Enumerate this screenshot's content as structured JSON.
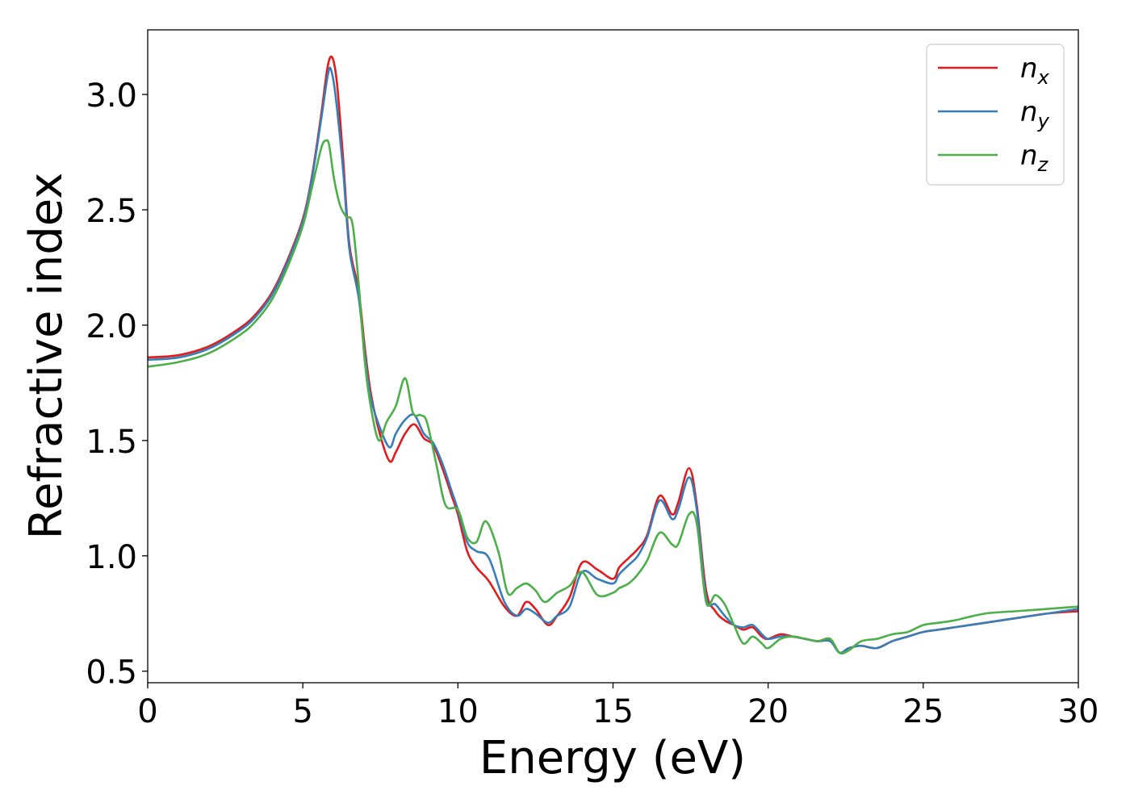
{
  "chart_data": {
    "type": "line",
    "title": "",
    "xlabel": "Energy (eV)",
    "ylabel": "Refractive index",
    "xlim": [
      0,
      30
    ],
    "ylim": [
      0.45,
      3.28
    ],
    "xticks": [
      0,
      5,
      10,
      15,
      20,
      25,
      30
    ],
    "xtick_labels": [
      "0",
      "5",
      "10",
      "15",
      "20",
      "25",
      "30"
    ],
    "yticks": [
      0.5,
      1.0,
      1.5,
      2.0,
      2.5,
      3.0
    ],
    "ytick_labels": [
      "0.5",
      "1.0",
      "1.5",
      "2.0",
      "2.5",
      "3.0"
    ],
    "grid": false,
    "legend_position": "top-right",
    "series": [
      {
        "name": "n",
        "subscript": "x",
        "color": "#e41a1c",
        "x": [
          0,
          1,
          2,
          3,
          3.5,
          4,
          4.5,
          5,
          5.3,
          5.6,
          5.8,
          5.95,
          6.1,
          6.3,
          6.5,
          6.8,
          7.0,
          7.2,
          7.5,
          7.8,
          8.0,
          8.3,
          8.6,
          8.9,
          9.2,
          9.5,
          9.8,
          10.0,
          10.3,
          10.6,
          11.0,
          11.5,
          11.9,
          12.2,
          12.5,
          12.9,
          13.2,
          13.6,
          14.0,
          14.5,
          15.0,
          15.2,
          15.5,
          15.8,
          16.1,
          16.5,
          16.9,
          17.1,
          17.45,
          17.7,
          18.0,
          18.3,
          18.6,
          18.9,
          19.2,
          19.5,
          19.8,
          20.0,
          20.4,
          20.8,
          21.2,
          21.6,
          22.0,
          22.3,
          22.6,
          23.0,
          23.5,
          24.0,
          24.5,
          25.0,
          25.5,
          26.0,
          27.0,
          28.0,
          29.0,
          30.0
        ],
        "values": [
          1.86,
          1.87,
          1.91,
          1.99,
          2.05,
          2.14,
          2.28,
          2.46,
          2.65,
          2.92,
          3.12,
          3.16,
          3.05,
          2.72,
          2.35,
          2.15,
          1.9,
          1.7,
          1.52,
          1.41,
          1.45,
          1.53,
          1.57,
          1.51,
          1.48,
          1.38,
          1.26,
          1.18,
          1.02,
          0.95,
          0.89,
          0.78,
          0.74,
          0.8,
          0.77,
          0.7,
          0.74,
          0.82,
          0.97,
          0.94,
          0.9,
          0.95,
          0.99,
          1.03,
          1.09,
          1.26,
          1.18,
          1.23,
          1.38,
          1.22,
          0.85,
          0.76,
          0.72,
          0.7,
          0.68,
          0.69,
          0.65,
          0.64,
          0.66,
          0.65,
          0.64,
          0.63,
          0.64,
          0.58,
          0.6,
          0.61,
          0.6,
          0.63,
          0.65,
          0.67,
          0.68,
          0.69,
          0.71,
          0.73,
          0.75,
          0.76
        ]
      },
      {
        "name": "n",
        "subscript": "y",
        "color": "#377eb8",
        "x": [
          0,
          1,
          2,
          3,
          3.5,
          4,
          4.5,
          5,
          5.3,
          5.6,
          5.8,
          5.9,
          6.05,
          6.3,
          6.5,
          6.8,
          7.0,
          7.2,
          7.5,
          7.8,
          8.0,
          8.3,
          8.6,
          8.9,
          9.2,
          9.5,
          9.8,
          10.0,
          10.3,
          10.6,
          11.0,
          11.5,
          11.9,
          12.2,
          12.5,
          12.9,
          13.2,
          13.6,
          14.0,
          14.5,
          15.0,
          15.2,
          15.5,
          15.8,
          16.1,
          16.5,
          16.9,
          17.1,
          17.45,
          17.7,
          18.0,
          18.3,
          18.6,
          18.9,
          19.2,
          19.5,
          19.8,
          20.0,
          20.4,
          20.8,
          21.2,
          21.6,
          22.0,
          22.3,
          22.6,
          23.0,
          23.5,
          24.0,
          24.5,
          25.0,
          25.5,
          26.0,
          27.0,
          28.0,
          29.0,
          30.0
        ],
        "values": [
          1.85,
          1.86,
          1.9,
          1.98,
          2.04,
          2.13,
          2.27,
          2.45,
          2.64,
          2.9,
          3.08,
          3.11,
          3.0,
          2.67,
          2.33,
          2.12,
          1.87,
          1.68,
          1.55,
          1.47,
          1.53,
          1.59,
          1.61,
          1.53,
          1.49,
          1.4,
          1.28,
          1.2,
          1.06,
          1.02,
          0.99,
          0.8,
          0.74,
          0.77,
          0.75,
          0.71,
          0.74,
          0.78,
          0.93,
          0.9,
          0.88,
          0.92,
          0.96,
          1.0,
          1.08,
          1.24,
          1.16,
          1.2,
          1.34,
          1.2,
          0.82,
          0.79,
          0.74,
          0.7,
          0.69,
          0.7,
          0.66,
          0.64,
          0.65,
          0.65,
          0.64,
          0.63,
          0.63,
          0.58,
          0.6,
          0.61,
          0.6,
          0.63,
          0.65,
          0.67,
          0.68,
          0.69,
          0.71,
          0.73,
          0.75,
          0.77
        ]
      },
      {
        "name": "n",
        "subscript": "z",
        "color": "#4daf4a",
        "x": [
          0,
          1,
          2,
          3,
          3.5,
          4,
          4.5,
          5,
          5.3,
          5.6,
          5.75,
          5.85,
          6.0,
          6.2,
          6.4,
          6.6,
          6.8,
          7.0,
          7.2,
          7.45,
          7.7,
          8.0,
          8.3,
          8.55,
          8.8,
          9.0,
          9.3,
          9.6,
          10.0,
          10.3,
          10.6,
          10.9,
          11.3,
          11.6,
          11.9,
          12.2,
          12.5,
          12.8,
          13.2,
          13.6,
          14.0,
          14.5,
          15.0,
          15.2,
          15.5,
          15.8,
          16.1,
          16.5,
          16.9,
          17.1,
          17.45,
          17.7,
          18.0,
          18.3,
          18.6,
          18.9,
          19.2,
          19.5,
          19.8,
          20.0,
          20.4,
          20.8,
          21.2,
          21.6,
          22.0,
          22.3,
          22.6,
          23.0,
          23.5,
          24.0,
          24.5,
          25.0,
          25.5,
          26.0,
          27.0,
          28.0,
          29.0,
          30.0
        ],
        "values": [
          1.82,
          1.84,
          1.88,
          1.96,
          2.02,
          2.11,
          2.25,
          2.43,
          2.6,
          2.77,
          2.8,
          2.78,
          2.64,
          2.52,
          2.47,
          2.44,
          2.18,
          1.84,
          1.64,
          1.5,
          1.58,
          1.65,
          1.77,
          1.62,
          1.61,
          1.58,
          1.4,
          1.22,
          1.2,
          1.08,
          1.06,
          1.15,
          1.02,
          0.84,
          0.86,
          0.88,
          0.85,
          0.8,
          0.84,
          0.87,
          0.93,
          0.83,
          0.84,
          0.86,
          0.88,
          0.92,
          0.98,
          1.1,
          1.05,
          1.05,
          1.18,
          1.14,
          0.8,
          0.83,
          0.79,
          0.7,
          0.62,
          0.65,
          0.62,
          0.6,
          0.64,
          0.65,
          0.64,
          0.63,
          0.64,
          0.58,
          0.59,
          0.63,
          0.64,
          0.66,
          0.67,
          0.7,
          0.71,
          0.72,
          0.75,
          0.76,
          0.77,
          0.78
        ]
      }
    ]
  }
}
